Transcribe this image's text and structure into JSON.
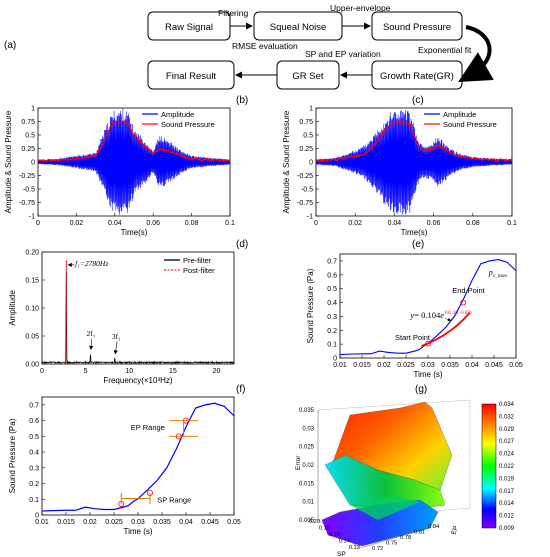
{
  "panel_labels": [
    "(a)",
    "(b)",
    "(c)",
    "(d)",
    "(e)",
    "(f)",
    "(g)"
  ],
  "flow": {
    "boxes": [
      "Raw Signal",
      "Squeal Noise",
      "Sound Pressure",
      "Growth Rate(GR)",
      "GR Set",
      "Final Result"
    ],
    "arrows": [
      "Filtering",
      "Upper-envelope",
      "Exponential fit",
      "SP and EP variation",
      "RMSE evaluation"
    ]
  },
  "chart_data": [
    {
      "id": "b",
      "type": "line",
      "xlabel": "Time(s)",
      "ylabel": "Amplitude & Sound Pressure",
      "xlim": [
        0,
        0.1
      ],
      "ylim": [
        -1,
        1
      ],
      "xticks": [
        "0",
        "0.02",
        "0.04",
        "0.06",
        "0.08",
        "0.1"
      ],
      "yticks": [
        "-1",
        "-0.75",
        "-0.5",
        "-0.25",
        "0",
        "0.25",
        "0.5",
        "0.75",
        "1"
      ],
      "legend": [
        "Amplitude",
        "Sound Pressure"
      ],
      "legend_position": "top-right",
      "series": [
        {
          "name": "Amplitude",
          "color": "#0000ff",
          "x": [
            0,
            0.01,
            0.02,
            0.03,
            0.034,
            0.038,
            0.04,
            0.044,
            0.047,
            0.05,
            0.055,
            0.06,
            0.063,
            0.066,
            0.07,
            0.075,
            0.08,
            0.09,
            0.1
          ],
          "y": [
            0.04,
            0.06,
            0.12,
            0.18,
            0.55,
            0.88,
            0.98,
            1.0,
            0.95,
            0.62,
            0.45,
            0.2,
            0.5,
            0.45,
            0.35,
            0.2,
            0.12,
            0.08,
            0.05
          ]
        },
        {
          "name": "Sound Pressure",
          "color": "#ff0000",
          "x": [
            0,
            0.01,
            0.02,
            0.03,
            0.034,
            0.038,
            0.04,
            0.044,
            0.047,
            0.05,
            0.055,
            0.06,
            0.063,
            0.066,
            0.07,
            0.075,
            0.08,
            0.09,
            0.1
          ],
          "y": [
            0.02,
            0.03,
            0.06,
            0.12,
            0.35,
            0.65,
            0.74,
            0.76,
            0.72,
            0.5,
            0.32,
            0.15,
            0.25,
            0.22,
            0.18,
            0.1,
            0.06,
            0.04,
            0.02
          ]
        }
      ]
    },
    {
      "id": "c",
      "type": "line",
      "xlabel": "Time(s)",
      "ylabel": "Amplitude & Sound Pressure",
      "xlim": [
        0,
        0.1
      ],
      "ylim": [
        -1,
        1
      ],
      "xticks": [
        "0",
        "0.02",
        "0.04",
        "0.06",
        "0.08",
        "0.1"
      ],
      "yticks": [
        "-1",
        "-0.75",
        "-0.5",
        "-0.25",
        "0",
        "0.25",
        "0.5",
        "0.75",
        "1"
      ],
      "legend": [
        "Amplitude",
        "Sound Pressure"
      ],
      "legend_position": "top-right",
      "series": [
        {
          "name": "Amplitude",
          "color": "#0000ff",
          "x": [
            0,
            0.01,
            0.02,
            0.025,
            0.03,
            0.035,
            0.04,
            0.045,
            0.048,
            0.052,
            0.055,
            0.058,
            0.062,
            0.066,
            0.07,
            0.075,
            0.08,
            0.09,
            0.1
          ],
          "y": [
            0.05,
            0.08,
            0.22,
            0.32,
            0.55,
            0.82,
            1.0,
            1.0,
            0.95,
            0.42,
            0.3,
            0.32,
            0.48,
            0.35,
            0.22,
            0.14,
            0.1,
            0.07,
            0.05
          ]
        },
        {
          "name": "Sound Pressure",
          "color": "#ff0000",
          "x": [
            0,
            0.01,
            0.02,
            0.025,
            0.03,
            0.035,
            0.04,
            0.045,
            0.048,
            0.052,
            0.055,
            0.058,
            0.062,
            0.066,
            0.07,
            0.075,
            0.08,
            0.09,
            0.1
          ],
          "y": [
            0.02,
            0.04,
            0.1,
            0.15,
            0.32,
            0.58,
            0.72,
            0.74,
            0.68,
            0.3,
            0.2,
            0.22,
            0.32,
            0.24,
            0.14,
            0.09,
            0.06,
            0.04,
            0.03
          ]
        }
      ]
    },
    {
      "id": "d",
      "type": "line",
      "xlabel": "Frequency(×10³Hz)",
      "ylabel": "Amplitude",
      "xlim": [
        0,
        22
      ],
      "ylim": [
        0,
        0.2
      ],
      "xticks": [
        "0",
        "5",
        "10",
        "15",
        "20"
      ],
      "yticks": [
        "0.00",
        "0.05",
        "0.10",
        "0.15",
        "0.20"
      ],
      "legend": [
        "Pre-filter",
        "Post-filter"
      ],
      "legend_position": "top-right",
      "annotations": [
        "f₁=2780Hz",
        "2f₁",
        "3f₁"
      ],
      "peaks": [
        {
          "x": 2.78,
          "y": 0.185
        },
        {
          "x": 5.56,
          "y": 0.022
        },
        {
          "x": 8.34,
          "y": 0.014
        }
      ],
      "series": [
        {
          "name": "Pre-filter",
          "color": "#000000"
        },
        {
          "name": "Post-filter",
          "color": "#cc0000"
        }
      ]
    },
    {
      "id": "e",
      "type": "line",
      "xlabel": "Time (s)",
      "ylabel": "Sound Pressure (Pa)",
      "xlim": [
        0.01,
        0.05
      ],
      "ylim": [
        0,
        0.75
      ],
      "xticks": [
        "0.01",
        "0.015",
        "0.02",
        "0.025",
        "0.03",
        "0.035",
        "0.04",
        "0.045",
        "0.05"
      ],
      "yticks": [
        "0",
        "0.1",
        "0.2",
        "0.3",
        "0.4",
        "0.5",
        "0.6",
        "0.7"
      ],
      "annotations": [
        "Start Point",
        "End Point",
        "pc_max"
      ],
      "equation": {
        "y": "y",
        "eq": "= 0.104",
        "e": "e",
        "exp": "102.3(t−0.03)"
      },
      "points": [
        {
          "x": 0.03,
          "y": 0.104
        },
        {
          "x": 0.038,
          "y": 0.4
        }
      ],
      "series": [
        {
          "name": "",
          "color": "#0000ff",
          "x": [
            0.01,
            0.012,
            0.015,
            0.017,
            0.019,
            0.021,
            0.023,
            0.025,
            0.027,
            0.028,
            0.029,
            0.03,
            0.032,
            0.034,
            0.036,
            0.038,
            0.04,
            0.042,
            0.044,
            0.046,
            0.048,
            0.05
          ],
          "y": [
            0.025,
            0.028,
            0.03,
            0.03,
            0.05,
            0.04,
            0.035,
            0.035,
            0.05,
            0.06,
            0.085,
            0.104,
            0.16,
            0.22,
            0.3,
            0.42,
            0.56,
            0.68,
            0.7,
            0.71,
            0.69,
            0.63
          ]
        },
        {
          "name": "",
          "color": "#ff0000",
          "fit": true
        }
      ]
    },
    {
      "id": "f",
      "type": "line",
      "xlabel": "Time (s)",
      "ylabel": "Sound Pressure (Pa)",
      "xlim": [
        0.01,
        0.05
      ],
      "ylim": [
        0,
        0.75
      ],
      "xticks": [
        "0.01",
        "0.015",
        "0.02",
        "0.025",
        "0.03",
        "0.035",
        "0.04",
        "0.045",
        "0.05"
      ],
      "yticks": [
        "0",
        "0.1",
        "0.2",
        "0.3",
        "0.4",
        "0.5",
        "0.6",
        "0.7"
      ],
      "annotations": [
        "EP Range",
        "SP Range"
      ],
      "points": [
        {
          "x": 0.0265,
          "y": 0.07
        },
        {
          "x": 0.0325,
          "y": 0.14
        },
        {
          "x": 0.0385,
          "y": 0.5
        },
        {
          "x": 0.04,
          "y": 0.6
        }
      ],
      "series": [
        {
          "name": "",
          "color": "#0000ff",
          "x": [
            0.01,
            0.012,
            0.015,
            0.017,
            0.019,
            0.021,
            0.023,
            0.025,
            0.027,
            0.028,
            0.029,
            0.03,
            0.032,
            0.034,
            0.036,
            0.038,
            0.04,
            0.042,
            0.044,
            0.046,
            0.048,
            0.05
          ],
          "y": [
            0.025,
            0.028,
            0.03,
            0.03,
            0.05,
            0.04,
            0.035,
            0.035,
            0.05,
            0.06,
            0.085,
            0.104,
            0.16,
            0.22,
            0.3,
            0.42,
            0.56,
            0.68,
            0.7,
            0.71,
            0.69,
            0.63
          ]
        }
      ]
    },
    {
      "id": "g",
      "type": "heatmap",
      "zlabel": "Error",
      "xlabel": "SP",
      "ylabel": "EP",
      "zticks": [
        "0.005",
        "0.01",
        "0.015",
        "0.02",
        "0.025",
        "0.03",
        "0.035"
      ],
      "spticks": [
        "0.20",
        "0.18",
        "0.16",
        "0.14",
        "0.12"
      ],
      "epticks": [
        "0.72",
        "0.75",
        "0.78",
        "0.81",
        "0.84"
      ],
      "colorbar": [
        "0.034",
        "0.032",
        "0.029",
        "0.027",
        "0.024",
        "0.022",
        "0.019",
        "0.017",
        "0.014",
        "0.012",
        "0.009"
      ]
    }
  ]
}
